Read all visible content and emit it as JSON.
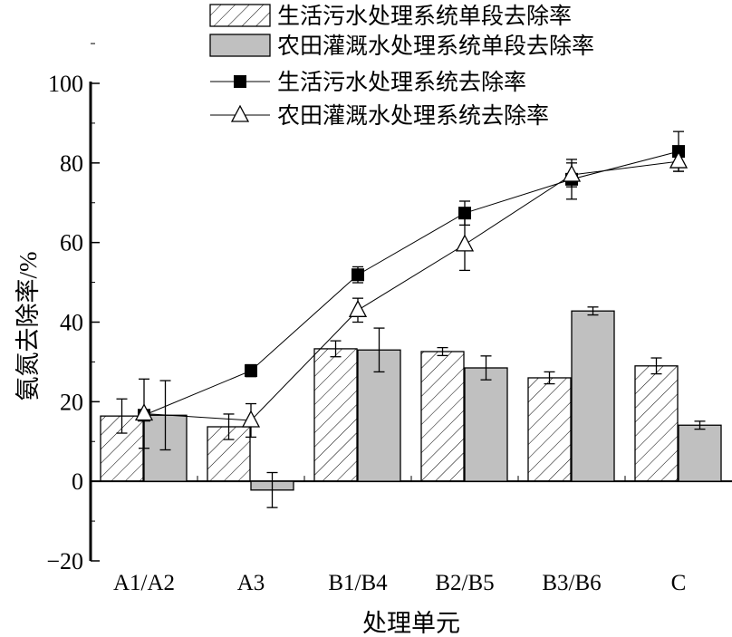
{
  "chart_data": {
    "type": "bar",
    "title": "",
    "xlabel": "处理单元",
    "ylabel": "氨氮去除率/%",
    "ylim": [
      -20,
      100
    ],
    "yticks": [
      -20,
      0,
      20,
      40,
      60,
      80,
      100
    ],
    "categories": [
      "A1/A2",
      "A3",
      "B1/B4",
      "B2/B5",
      "B3/B6",
      "C"
    ],
    "legend_position": "top",
    "bar_series": [
      {
        "name": "生活污水处理系统单段去除率",
        "style": "hatched",
        "color": "#ffffff",
        "values": [
          16.4,
          13.7,
          33.3,
          32.6,
          26.0,
          29.0
        ],
        "errors": [
          4.3,
          3.2,
          2.0,
          1.0,
          1.5,
          2.0
        ]
      },
      {
        "name": "农田灌溉水处理系统单段去除率",
        "style": "solid",
        "color": "#c0c0c0",
        "values": [
          16.6,
          -2.2,
          33.0,
          28.5,
          42.8,
          14.1
        ],
        "errors": [
          8.7,
          4.4,
          5.5,
          3.0,
          1.0,
          1.0
        ]
      }
    ],
    "line_series": [
      {
        "name": "生活污水处理系统去除率",
        "marker": "filled-square",
        "values": [
          16.6,
          27.8,
          51.9,
          67.4,
          75.9,
          82.9
        ],
        "errors": [
          1.0,
          1.5,
          2.0,
          3.0,
          5.0,
          5.0
        ]
      },
      {
        "name": "农田灌溉水处理系统去除率",
        "marker": "open-triangle",
        "values": [
          17.0,
          15.3,
          43.0,
          59.5,
          77.0,
          80.4
        ],
        "errors": [
          8.7,
          4.2,
          3.0,
          6.5,
          3.0,
          2.5
        ]
      }
    ]
  }
}
